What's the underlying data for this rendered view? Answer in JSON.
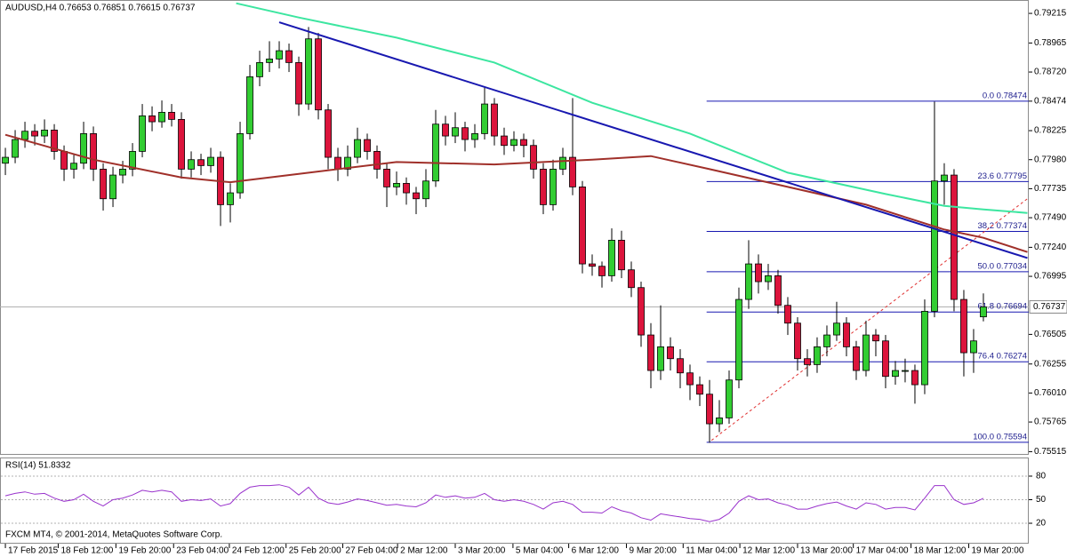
{
  "chart_data": {
    "type": "candlestick",
    "title": "AUDUSD,H4 0.76653 0.76851 0.76615 0.76737",
    "footer": "FXCM MT4, © 2001-2014, MetaQuotes Software Corp.",
    "xlim": [
      -0.55,
      104.64
    ],
    "ylim": [
      0.75488,
      0.79328
    ],
    "yticks": [
      0.79215,
      0.78965,
      {
        "value": 0.7872,
        "label": "0.78720"
      },
      0.78474,
      0.78225,
      {
        "value": 0.7798,
        "label": "0.77980"
      },
      0.77735,
      {
        "value": 0.7749,
        "label": "0.77490"
      },
      {
        "value": 0.7724,
        "label": "0.77240"
      },
      0.76995,
      0.76505,
      0.76255,
      {
        "value": 0.7601,
        "label": "0.76010"
      },
      0.75765,
      0.75515
    ],
    "xticks": [
      {
        "value": 0,
        "label": "17 Feb 2015"
      },
      {
        "value": 5.4,
        "label": "18 Feb 12:00"
      },
      {
        "value": 11.3,
        "label": "19 Feb 20:00"
      },
      {
        "value": 17.2,
        "label": "23 Feb 04:00"
      },
      {
        "value": 22.9,
        "label": "24 Feb 12:00"
      },
      {
        "value": 28.7,
        "label": "25 Feb 20:00"
      },
      {
        "value": 34.5,
        "label": "27 Feb 04:00"
      },
      {
        "value": 40.1,
        "label": "2 Mar 12:00"
      },
      {
        "value": 46,
        "label": "3 Mar 20:00"
      },
      {
        "value": 51.9,
        "label": "5 Mar 04:00"
      },
      {
        "value": 57.6,
        "label": "6 Mar 12:00"
      },
      {
        "value": 63.5,
        "label": "9 Mar 20:00"
      },
      {
        "value": 69.3,
        "label": "11 Mar 04:00"
      },
      {
        "value": 75.1,
        "label": "12 Mar 12:00"
      },
      {
        "value": 81,
        "label": "13 Mar 20:00"
      },
      {
        "value": 86.7,
        "label": "17 Mar 04:00"
      },
      {
        "value": 92.6,
        "label": "18 Mar 12:00"
      },
      {
        "value": 98.5,
        "label": "19 Mar 20:00"
      }
    ],
    "up_color": "#32cd32",
    "down_color": "#dc143c",
    "current_price": 0.76737,
    "candles": [
      [
        0.7795,
        0.7808,
        0.7785,
        0.78
      ],
      [
        0.78,
        0.7823,
        0.7795,
        0.7815
      ],
      [
        0.7815,
        0.783,
        0.7808,
        0.7822
      ],
      [
        0.7822,
        0.7828,
        0.781,
        0.7818
      ],
      [
        0.7818,
        0.7832,
        0.7812,
        0.7823
      ],
      [
        0.7823,
        0.7828,
        0.7798,
        0.7805
      ],
      [
        0.7805,
        0.781,
        0.778,
        0.779
      ],
      [
        0.779,
        0.7802,
        0.7782,
        0.7795
      ],
      [
        0.7795,
        0.783,
        0.779,
        0.782
      ],
      [
        0.782,
        0.7826,
        0.778,
        0.779
      ],
      [
        0.779,
        0.7795,
        0.7755,
        0.7765
      ],
      [
        0.7765,
        0.7792,
        0.7758,
        0.7785
      ],
      [
        0.7785,
        0.7797,
        0.7778,
        0.779
      ],
      [
        0.779,
        0.7812,
        0.7784,
        0.7805
      ],
      [
        0.7805,
        0.7845,
        0.78,
        0.7835
      ],
      [
        0.7835,
        0.7843,
        0.7822,
        0.783
      ],
      [
        0.783,
        0.7848,
        0.7825,
        0.7838
      ],
      [
        0.7838,
        0.7845,
        0.7826,
        0.7832
      ],
      [
        0.7832,
        0.7838,
        0.7782,
        0.779
      ],
      [
        0.779,
        0.7805,
        0.7783,
        0.7798
      ],
      [
        0.7798,
        0.7803,
        0.7785,
        0.7793
      ],
      [
        0.7793,
        0.7808,
        0.7787,
        0.78
      ],
      [
        0.78,
        0.7805,
        0.7742,
        0.776
      ],
      [
        0.776,
        0.7778,
        0.7745,
        0.777
      ],
      [
        0.777,
        0.783,
        0.7765,
        0.782
      ],
      [
        0.782,
        0.7878,
        0.7815,
        0.7868
      ],
      [
        0.7868,
        0.789,
        0.786,
        0.788
      ],
      [
        0.788,
        0.7898,
        0.7872,
        0.7883
      ],
      [
        0.7883,
        0.7898,
        0.7875,
        0.789
      ],
      [
        0.789,
        0.7896,
        0.7872,
        0.788
      ],
      [
        0.788,
        0.7885,
        0.7835,
        0.7845
      ],
      [
        0.7845,
        0.791,
        0.784,
        0.79
      ],
      [
        0.79,
        0.7905,
        0.7832,
        0.784
      ],
      [
        0.784,
        0.7845,
        0.779,
        0.78
      ],
      [
        0.78,
        0.7808,
        0.778,
        0.779
      ],
      [
        0.779,
        0.781,
        0.7784,
        0.78
      ],
      [
        0.78,
        0.7825,
        0.7795,
        0.7815
      ],
      [
        0.7815,
        0.782,
        0.7798,
        0.7805
      ],
      [
        0.7805,
        0.781,
        0.7782,
        0.779
      ],
      [
        0.779,
        0.7795,
        0.7758,
        0.7775
      ],
      [
        0.7775,
        0.7788,
        0.7768,
        0.7778
      ],
      [
        0.7778,
        0.7783,
        0.776,
        0.777
      ],
      [
        0.777,
        0.7775,
        0.7752,
        0.7765
      ],
      [
        0.7765,
        0.779,
        0.7758,
        0.778
      ],
      [
        0.778,
        0.784,
        0.7775,
        0.7828
      ],
      [
        0.7828,
        0.7835,
        0.781,
        0.7818
      ],
      [
        0.7818,
        0.7838,
        0.7812,
        0.7825
      ],
      [
        0.7825,
        0.783,
        0.7805,
        0.7815
      ],
      [
        0.7815,
        0.7828,
        0.7808,
        0.782
      ],
      [
        0.782,
        0.786,
        0.7815,
        0.7845
      ],
      [
        0.7845,
        0.785,
        0.781,
        0.7818
      ],
      [
        0.7818,
        0.7825,
        0.7802,
        0.781
      ],
      [
        0.781,
        0.7822,
        0.7805,
        0.7815
      ],
      [
        0.7815,
        0.782,
        0.78,
        0.781
      ],
      [
        0.781,
        0.7815,
        0.7782,
        0.779
      ],
      [
        0.779,
        0.7795,
        0.7752,
        0.776
      ],
      [
        0.776,
        0.7798,
        0.7755,
        0.779
      ],
      [
        0.779,
        0.7808,
        0.7785,
        0.78
      ],
      [
        0.78,
        0.785,
        0.7768,
        0.7775
      ],
      [
        0.7775,
        0.778,
        0.7702,
        0.771
      ],
      [
        0.771,
        0.7718,
        0.77,
        0.7708
      ],
      [
        0.7708,
        0.7712,
        0.769,
        0.77
      ],
      [
        0.77,
        0.774,
        0.7695,
        0.773
      ],
      [
        0.773,
        0.7738,
        0.7698,
        0.7705
      ],
      [
        0.7705,
        0.7712,
        0.7682,
        0.769
      ],
      [
        0.769,
        0.7695,
        0.764,
        0.765
      ],
      [
        0.765,
        0.766,
        0.7605,
        0.762
      ],
      [
        0.762,
        0.7675,
        0.7612,
        0.764
      ],
      [
        0.764,
        0.7648,
        0.762,
        0.763
      ],
      [
        0.763,
        0.7638,
        0.7605,
        0.7618
      ],
      [
        0.7618,
        0.7625,
        0.7595,
        0.7608
      ],
      [
        0.7608,
        0.7615,
        0.759,
        0.76
      ],
      [
        0.76,
        0.7612,
        0.7559,
        0.7575
      ],
      [
        0.7575,
        0.7595,
        0.7568,
        0.758
      ],
      [
        0.758,
        0.762,
        0.7575,
        0.7612
      ],
      [
        0.7612,
        0.769,
        0.7605,
        0.768
      ],
      [
        0.768,
        0.773,
        0.7672,
        0.771
      ],
      [
        0.771,
        0.7718,
        0.7685,
        0.7695
      ],
      [
        0.7695,
        0.771,
        0.7688,
        0.77
      ],
      [
        0.77,
        0.7705,
        0.7668,
        0.7675
      ],
      [
        0.7675,
        0.7682,
        0.765,
        0.766
      ],
      [
        0.766,
        0.7665,
        0.762,
        0.763
      ],
      [
        0.763,
        0.7638,
        0.7615,
        0.7625
      ],
      [
        0.7625,
        0.7648,
        0.7618,
        0.764
      ],
      [
        0.764,
        0.7658,
        0.7632,
        0.765
      ],
      [
        0.765,
        0.7678,
        0.7645,
        0.766
      ],
      [
        0.766,
        0.7665,
        0.7632,
        0.764
      ],
      [
        0.764,
        0.7645,
        0.7612,
        0.762
      ],
      [
        0.762,
        0.7662,
        0.7615,
        0.765
      ],
      [
        0.765,
        0.7655,
        0.7632,
        0.7645
      ],
      [
        0.7645,
        0.765,
        0.7605,
        0.7615
      ],
      [
        0.7615,
        0.7628,
        0.7608,
        0.762
      ],
      [
        0.762,
        0.763,
        0.761,
        0.762
      ],
      [
        0.762,
        0.7625,
        0.7592,
        0.7608
      ],
      [
        0.7608,
        0.768,
        0.76,
        0.767
      ],
      [
        0.767,
        0.7847,
        0.7665,
        0.778
      ],
      [
        0.778,
        0.7795,
        0.776,
        0.7785
      ],
      [
        0.7785,
        0.779,
        0.767,
        0.768
      ],
      [
        0.768,
        0.7688,
        0.7615,
        0.7635
      ],
      [
        0.7635,
        0.7655,
        0.7618,
        0.7645
      ],
      [
        0.76653,
        0.76851,
        0.76615,
        0.76737
      ]
    ],
    "moving_averages": [
      {
        "color": "#a0302a",
        "x": [
          0,
          9,
          18,
          23,
          30,
          40,
          50,
          60,
          66,
          72,
          80,
          88,
          96,
          100,
          104.5
        ],
        "values": [
          0.7819,
          0.7798,
          0.7783,
          0.7779,
          0.7786,
          0.7796,
          0.7794,
          0.7798,
          0.7801,
          0.779,
          0.7775,
          0.776,
          0.7739,
          0.7732,
          0.772
        ]
      },
      {
        "color": "#3ce6a0",
        "x": [
          23.6,
          30,
          40,
          50,
          60,
          70,
          80,
          90,
          96,
          100,
          104.5
        ],
        "values": [
          0.793,
          0.7918,
          0.7901,
          0.788,
          0.7846,
          0.782,
          0.7787,
          0.7769,
          0.7759,
          0.7756,
          0.7753
        ]
      }
    ],
    "trendline": {
      "color": "#1818b0",
      "x": [
        28,
        104.5
      ],
      "values": [
        0.7914,
        0.7715
      ]
    },
    "fib_line": {
      "color": "#e03030",
      "x": [
        72.2,
        104.5
      ],
      "values": [
        0.7561,
        0.7765
      ]
    },
    "fib_x": 71.7,
    "fib_color": "#1818b0",
    "fib_levels": [
      {
        "value": 0.78474,
        "label": "0.0 0.78474"
      },
      {
        "value": 0.77795,
        "label": "23.6 0.77795"
      },
      {
        "value": 0.77374,
        "label": "38.2 0.77374"
      },
      {
        "value": 0.77034,
        "label": "50.0 0.77034"
      },
      {
        "value": 0.76694,
        "label": "61.8 0.76694"
      },
      {
        "value": 0.76274,
        "label": "76.4 0.76274"
      },
      {
        "value": 0.75594,
        "label": "100.0 0.75594"
      }
    ],
    "indicator": {
      "type": "line",
      "title": "RSI(14) 51.8332",
      "color": "#9932cc",
      "ylim": [
        -6,
        102.6
      ],
      "yticks": [
        80,
        50,
        20
      ],
      "values": [
        55,
        58,
        60,
        57,
        58,
        52,
        48,
        50,
        57,
        48,
        42,
        50,
        52,
        56,
        62,
        60,
        62,
        60,
        48,
        50,
        49,
        51,
        42,
        45,
        58,
        66,
        68,
        68,
        69,
        66,
        56,
        66,
        52,
        46,
        44,
        47,
        51,
        49,
        46,
        43,
        44,
        42,
        41,
        46,
        56,
        53,
        55,
        52,
        53,
        58,
        50,
        48,
        50,
        48,
        44,
        38,
        46,
        48,
        44,
        34,
        34,
        33,
        41,
        36,
        33,
        27,
        24,
        32,
        30,
        28,
        26,
        25,
        22,
        25,
        33,
        48,
        55,
        50,
        51,
        46,
        43,
        38,
        38,
        42,
        45,
        47,
        42,
        38,
        46,
        44,
        38,
        40,
        40,
        37,
        52,
        68,
        68,
        50,
        44,
        46,
        51.8332
      ]
    }
  }
}
